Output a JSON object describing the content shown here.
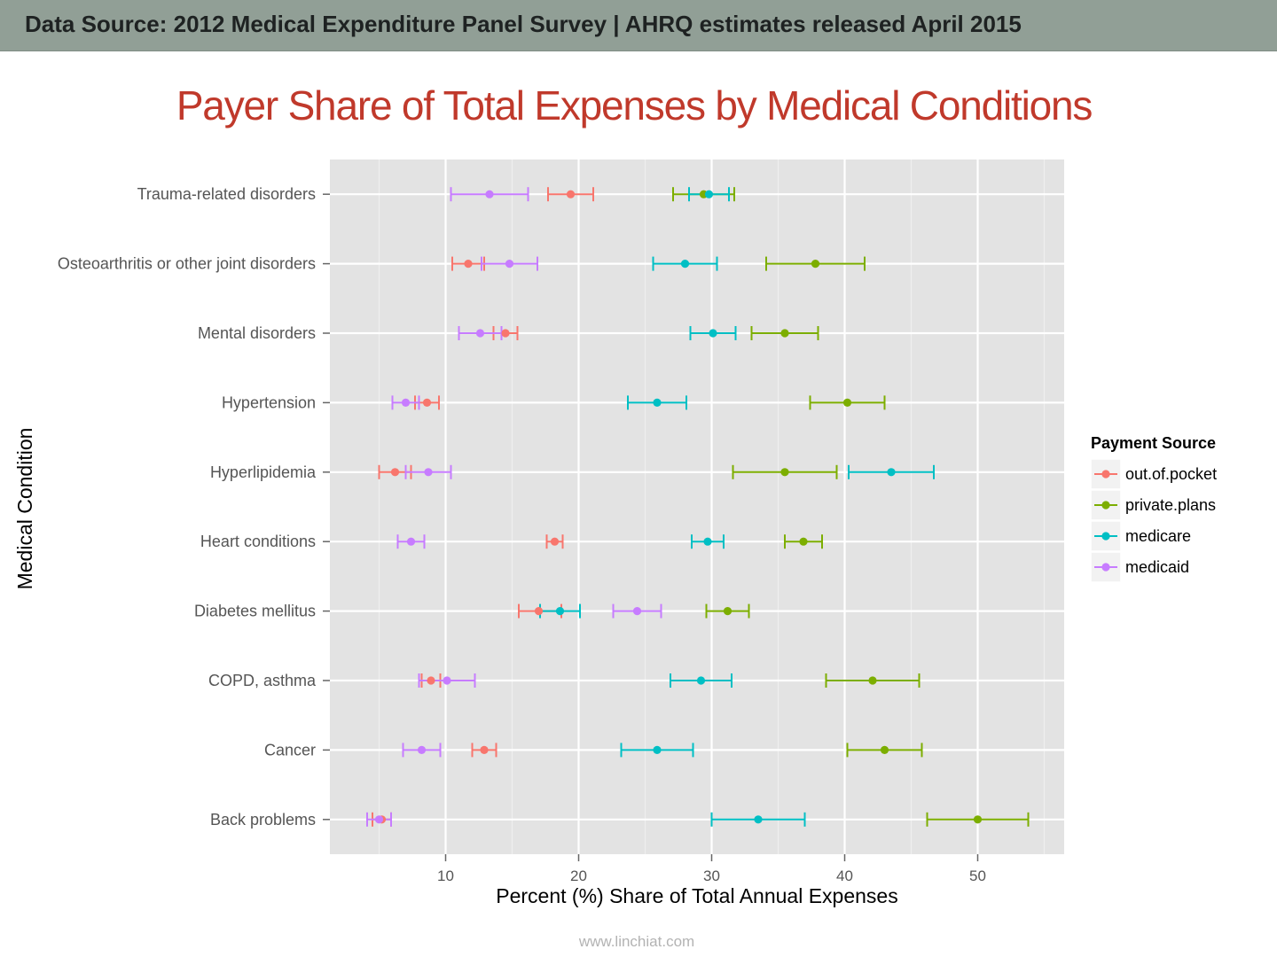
{
  "banner": {
    "text": "Data Source: 2012 Medical Expenditure Panel Survey | AHRQ estimates released April 2015"
  },
  "footer": {
    "text": "www.linchiat.com"
  },
  "chart_data": {
    "type": "scatter",
    "title": "Payer Share of Total Expenses by Medical Conditions",
    "xlabel": "Percent (%) Share of Total Annual Expenses",
    "ylabel": "Medical Condition",
    "xlim": [
      1.3,
      56.5
    ],
    "xticks": [
      10,
      20,
      30,
      40,
      50
    ],
    "grid": true,
    "panel_background": "#e3e3e3",
    "legend": {
      "title": "Payment Source",
      "placement": "right",
      "items": [
        "out.of.pocket",
        "private.plans",
        "medicare",
        "medicaid"
      ]
    },
    "categories": [
      "Trauma-related disorders",
      "Osteoarthritis or other joint disorders",
      "Mental disorders",
      "Hypertension",
      "Hyperlipidemia",
      "Heart conditions",
      "Diabetes mellitus",
      "COPD, asthma",
      "Cancer",
      "Back problems"
    ],
    "series": [
      {
        "name": "out.of.pocket",
        "color": "#f8766d",
        "values": [
          19.4,
          11.7,
          14.5,
          8.6,
          6.2,
          18.2,
          17.0,
          8.9,
          12.9,
          5.2
        ],
        "lower": [
          17.7,
          10.5,
          13.6,
          7.7,
          5.0,
          17.6,
          15.5,
          8.2,
          12.0,
          4.5
        ],
        "upper": [
          21.1,
          12.9,
          15.4,
          9.5,
          7.4,
          18.8,
          18.7,
          9.6,
          13.8,
          5.9
        ]
      },
      {
        "name": "private.plans",
        "color": "#7cae00",
        "values": [
          29.4,
          37.8,
          35.5,
          40.2,
          35.5,
          36.9,
          31.2,
          42.1,
          43.0,
          50.0
        ],
        "lower": [
          27.1,
          34.1,
          33.0,
          37.4,
          31.6,
          35.5,
          29.6,
          38.6,
          40.2,
          46.2
        ],
        "upper": [
          31.7,
          41.5,
          38.0,
          43.0,
          39.4,
          38.3,
          32.8,
          45.6,
          45.8,
          53.8
        ]
      },
      {
        "name": "medicare",
        "color": "#00bfc4",
        "values": [
          29.8,
          28.0,
          30.1,
          25.9,
          43.5,
          29.7,
          18.6,
          29.2,
          25.9,
          33.5
        ],
        "lower": [
          28.3,
          25.6,
          28.4,
          23.7,
          40.3,
          28.5,
          17.1,
          26.9,
          23.2,
          30.0
        ],
        "upper": [
          31.3,
          30.4,
          31.8,
          28.1,
          46.7,
          30.9,
          20.1,
          31.5,
          28.6,
          37.0
        ]
      },
      {
        "name": "medicaid",
        "color": "#c77cff",
        "values": [
          13.3,
          14.8,
          12.6,
          7.0,
          8.7,
          7.4,
          24.4,
          10.1,
          8.2,
          5.0
        ],
        "lower": [
          10.4,
          12.7,
          11.0,
          6.0,
          7.0,
          6.4,
          22.6,
          8.0,
          6.8,
          4.1
        ],
        "upper": [
          16.2,
          16.9,
          14.2,
          8.0,
          10.4,
          8.4,
          26.2,
          12.2,
          9.6,
          5.9
        ]
      }
    ]
  }
}
